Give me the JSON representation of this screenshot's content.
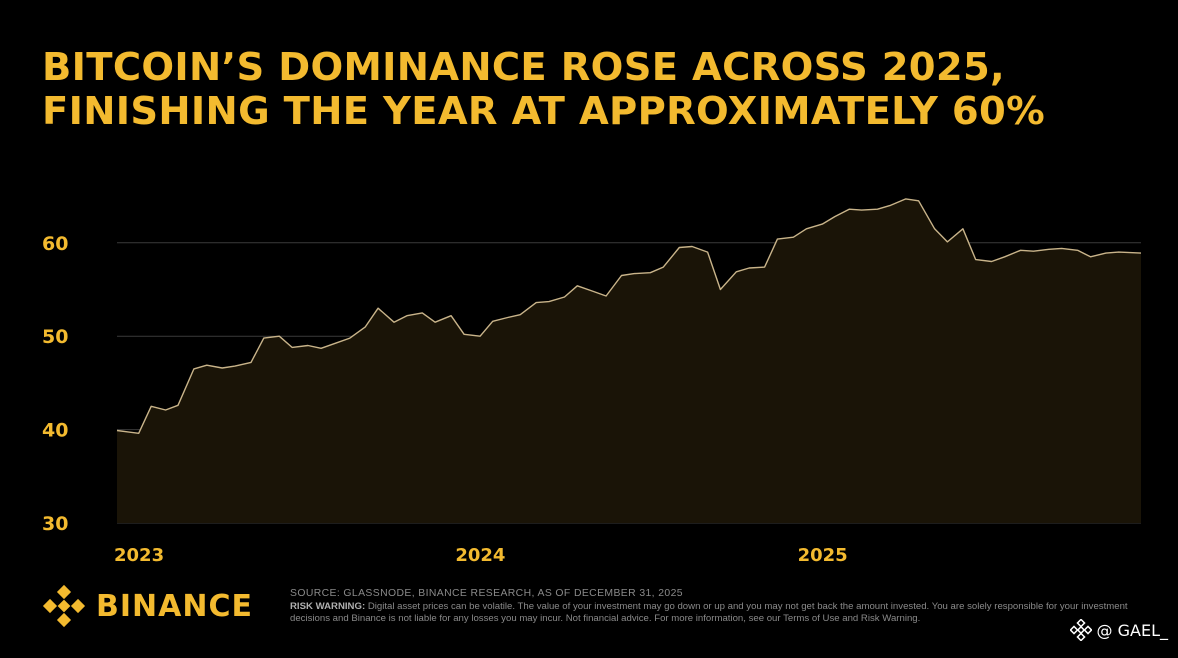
{
  "header": {
    "title_line1": "BITCOIN’S DOMINANCE ROSE ACROSS 2025,",
    "title_line2": "FINISHING THE YEAR AT APPROXIMATELY 60%"
  },
  "chart_data": {
    "type": "area",
    "y_ticks": [
      "60",
      "50",
      "40",
      "30"
    ],
    "x_ticks": [
      "2023",
      "2024",
      "2025"
    ],
    "ylim": [
      30,
      64
    ],
    "grid": true,
    "series": [
      {
        "x": [
          "2023-01",
          "2023-01",
          "2023-02",
          "2023-02",
          "2023-03",
          "2023-03",
          "2023-04",
          "2023-04",
          "2023-05",
          "2023-05",
          "2023-06",
          "2023-06",
          "2023-07",
          "2023-07",
          "2023-08",
          "2023-08",
          "2023-09",
          "2023-09",
          "2023-10",
          "2023-10",
          "2023-11",
          "2023-11",
          "2023-12",
          "2023-12",
          "2024-01",
          "2024-01",
          "2024-02",
          "2024-02",
          "2024-03",
          "2024-03",
          "2024-04",
          "2024-04",
          "2024-05",
          "2024-05",
          "2024-06",
          "2024-06",
          "2024-07",
          "2024-07",
          "2024-08",
          "2024-08",
          "2024-09",
          "2024-09",
          "2024-10",
          "2024-10",
          "2024-11",
          "2024-11",
          "2024-12",
          "2024-12",
          "2025-01",
          "2025-01",
          "2025-02",
          "2025-02",
          "2025-03",
          "2025-03",
          "2025-04",
          "2025-04",
          "2025-05",
          "2025-05",
          "2025-06",
          "2025-06",
          "2025-07",
          "2025-07",
          "2025-08",
          "2025-08",
          "2025-09",
          "2025-09",
          "2025-10",
          "2025-10",
          "2025-11",
          "2025-11",
          "2025-12",
          "2025-12"
        ],
        "values": [
          39.9,
          39.6,
          42.5,
          42.1,
          42.6,
          46.5,
          46.9,
          46.6,
          46.8,
          47.2,
          49.8,
          50.0,
          48.8,
          49.0,
          48.7,
          49.3,
          49.8,
          51.0,
          53.0,
          51.5,
          52.2,
          52.5,
          51.5,
          52.2,
          50.2,
          50.0,
          51.6,
          52.0,
          52.3,
          53.6,
          53.7,
          54.2,
          55.4,
          54.8,
          54.3,
          56.5,
          56.7,
          56.8,
          57.4,
          59.5,
          59.6,
          59.0,
          55.0,
          56.9,
          57.3,
          57.4,
          60.4,
          60.6,
          61.5,
          62.0,
          62.8,
          63.6,
          63.5,
          63.6,
          64.0,
          64.7,
          64.5,
          61.5,
          60.1,
          61.5,
          58.2,
          58.0,
          58.5,
          59.2,
          59.1,
          59.3,
          59.4,
          59.2,
          58.5,
          58.9,
          59.0,
          58.9
        ]
      }
    ]
  },
  "footer": {
    "brand": "BINANCE",
    "source": "SOURCE: GLASSNODE, BINANCE RESEARCH, AS OF DECEMBER 31, 2025",
    "risk_label": "RISK WARNING:",
    "risk_text": "Digital asset prices can be volatile. The value of your investment may go down or up and you may not get back the amount invested. You are solely responsible for your investment decisions and Binance is not liable for any losses you may incur. Not financial advice. For more information, see our Terms of Use and Risk Warning.",
    "watermark": "@ GAEL_"
  },
  "colors": {
    "accent": "#F3BA2F",
    "line": "#C9B48A",
    "area": "#1A1407",
    "grid": "#3a3a3a",
    "background": "#000000"
  }
}
